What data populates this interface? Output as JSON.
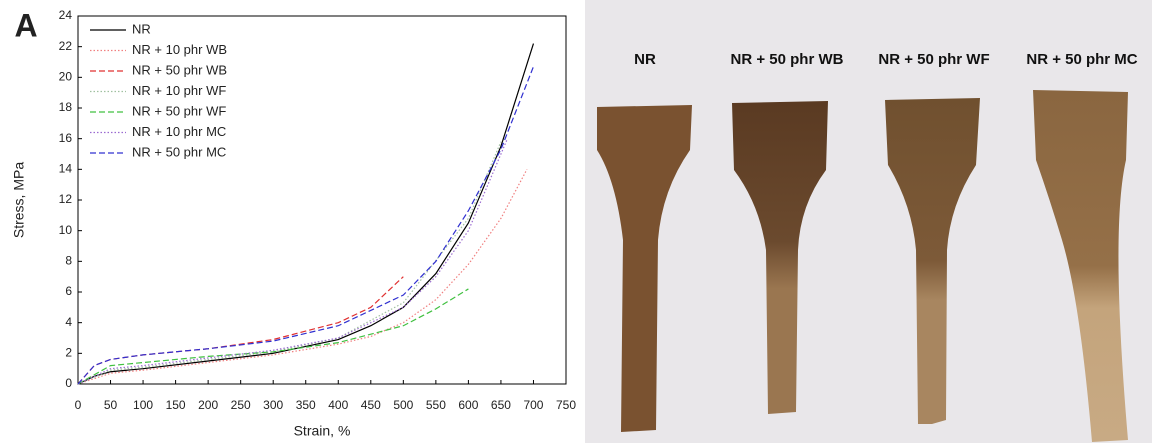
{
  "chart_data": {
    "type": "line",
    "panel_label": "A",
    "x_label": "Strain, %",
    "y_label": "Stress, MPa",
    "xlim": [
      0,
      750
    ],
    "ylim": [
      0,
      24
    ],
    "xticks": [
      0,
      50,
      100,
      150,
      200,
      250,
      300,
      350,
      400,
      450,
      500,
      550,
      600,
      650,
      700,
      750
    ],
    "yticks": [
      0,
      2,
      4,
      6,
      8,
      10,
      12,
      14,
      16,
      18,
      20,
      22,
      24
    ],
    "grid": false,
    "legend": "upper left",
    "series": [
      {
        "name": "NR",
        "color": "#000000",
        "dash": "solid",
        "x": [
          0,
          25,
          50,
          100,
          200,
          300,
          400,
          450,
          500,
          550,
          600,
          650,
          700
        ],
        "values": [
          0,
          0.5,
          0.8,
          1.0,
          1.5,
          2.0,
          2.9,
          3.8,
          5.0,
          7.2,
          10.5,
          15.5,
          22.2
        ]
      },
      {
        "name": "NR + 10 phr WB",
        "color": "#f08080",
        "dash": "dotted",
        "x": [
          0,
          50,
          100,
          200,
          300,
          400,
          450,
          500,
          550,
          600,
          650,
          690
        ],
        "values": [
          0,
          0.7,
          0.9,
          1.4,
          1.9,
          2.6,
          3.1,
          4.0,
          5.5,
          7.8,
          10.8,
          14.0
        ]
      },
      {
        "name": "NR + 50 phr WB",
        "color": "#e03030",
        "dash": "dashed",
        "x": [
          0,
          25,
          50,
          100,
          200,
          300,
          400,
          450,
          500
        ],
        "values": [
          0,
          1.2,
          1.6,
          1.9,
          2.3,
          2.9,
          4.0,
          5.0,
          7.0
        ]
      },
      {
        "name": "NR + 10 phr WF",
        "color": "#a0c0a0",
        "dash": "dotted",
        "x": [
          0,
          50,
          100,
          200,
          300,
          400,
          500,
          600,
          650
        ],
        "values": [
          0,
          0.9,
          1.1,
          1.6,
          2.1,
          3.0,
          5.3,
          10.8,
          15.8
        ]
      },
      {
        "name": "NR + 50 phr WF",
        "color": "#40c040",
        "dash": "dashed",
        "x": [
          0,
          50,
          100,
          200,
          300,
          400,
          500,
          550,
          600
        ],
        "values": [
          0,
          1.2,
          1.4,
          1.8,
          2.1,
          2.7,
          3.8,
          4.9,
          6.2
        ]
      },
      {
        "name": "NR + 10 phr MC",
        "color": "#9a6ad0",
        "dash": "dotted",
        "x": [
          0,
          50,
          100,
          200,
          300,
          400,
          500,
          550,
          600,
          660
        ],
        "values": [
          0,
          1.0,
          1.2,
          1.7,
          2.2,
          3.0,
          5.0,
          7.0,
          10.0,
          16.0
        ]
      },
      {
        "name": "NR + 50 phr MC",
        "color": "#3030d0",
        "dash": "dashed",
        "x": [
          0,
          25,
          50,
          100,
          200,
          300,
          400,
          500,
          550,
          600,
          650,
          700
        ],
        "values": [
          0,
          1.2,
          1.6,
          1.9,
          2.3,
          2.8,
          3.8,
          5.8,
          8.0,
          11.3,
          15.3,
          20.7
        ]
      }
    ]
  },
  "photo": {
    "labels": [
      "NR",
      "NR + 50 phr WB",
      "NR + 50 phr WF",
      "NR + 50 phr MC"
    ]
  }
}
